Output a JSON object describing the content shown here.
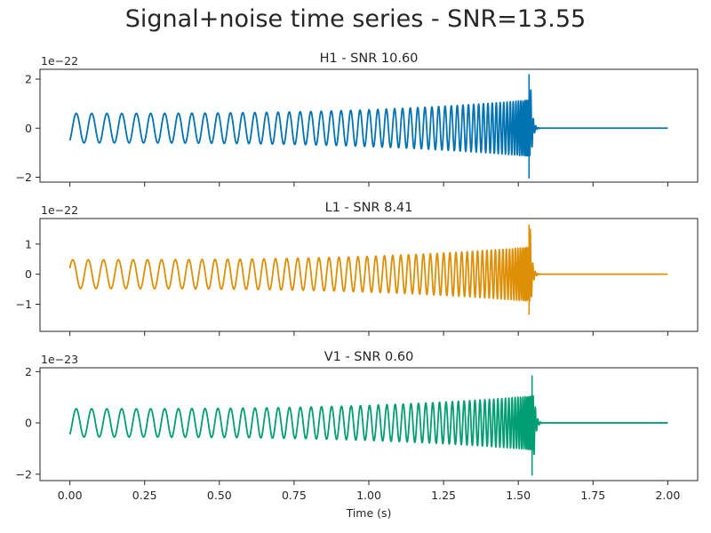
{
  "figure": {
    "title": "Signal+noise time series - SNR=13.55",
    "xlabel": "Time (s)"
  },
  "chart_data": [
    {
      "type": "line",
      "title": "H1 - SNR 10.60",
      "offset_label": "1e−22",
      "color": "#0173b2",
      "xlim": [
        -0.1,
        2.1
      ],
      "ylim": [
        -2.2,
        2.4
      ],
      "yticks": [
        2,
        0,
        -2
      ],
      "ytick_labels": [
        "2",
        "0",
        "−2"
      ],
      "xticks": [
        0.0,
        0.25,
        0.5,
        0.75,
        1.0,
        1.25,
        1.5,
        1.75,
        2.0
      ],
      "signal": {
        "x_start": 0.0,
        "x_end": 2.0,
        "merger_time": 1.54,
        "y0": -0.5,
        "amplitude_start": 0.6,
        "amplitude_peak": 1.15,
        "burst_peak": 2.2,
        "burst_min": -2.05,
        "ringdown_end": 1.6,
        "cycles": 35
      },
      "grid": false
    },
    {
      "type": "line",
      "title": "L1 - SNR 8.41",
      "offset_label": "1e−22",
      "color": "#de8f05",
      "xlim": [
        -0.1,
        2.1
      ],
      "ylim": [
        -1.9,
        1.85
      ],
      "yticks": [
        1,
        0,
        -1
      ],
      "ytick_labels": [
        "1",
        "0",
        "−1"
      ],
      "xticks": [
        0.0,
        0.25,
        0.5,
        0.75,
        1.0,
        1.25,
        1.5,
        1.75,
        2.0
      ],
      "signal": {
        "x_start": 0.0,
        "x_end": 2.0,
        "merger_time": 1.54,
        "y0": 0.2,
        "amplitude_start": 0.48,
        "amplitude_peak": 0.9,
        "burst_peak": 1.65,
        "burst_min": -1.35,
        "ringdown_end": 1.6,
        "cycles": 35
      },
      "grid": false
    },
    {
      "type": "line",
      "title": "V1 - SNR 0.60",
      "offset_label": "1e−23",
      "color": "#029e73",
      "xlim": [
        -0.1,
        2.1
      ],
      "ylim": [
        -2.25,
        2.15
      ],
      "yticks": [
        2,
        0,
        -2
      ],
      "ytick_labels": [
        "2",
        "0",
        "−2"
      ],
      "xticks": [
        0.0,
        0.25,
        0.5,
        0.75,
        1.0,
        1.25,
        1.5,
        1.75,
        2.0
      ],
      "xtick_labels": [
        "0.00",
        "0.25",
        "0.50",
        "0.75",
        "1.00",
        "1.25",
        "1.50",
        "1.75",
        "2.00"
      ],
      "signal": {
        "x_start": 0.0,
        "x_end": 2.0,
        "merger_time": 1.55,
        "y0": -0.45,
        "amplitude_start": 0.55,
        "amplitude_peak": 1.05,
        "burst_peak": 1.85,
        "burst_min": -2.05,
        "ringdown_end": 1.6,
        "cycles": 35
      },
      "grid": false
    }
  ]
}
